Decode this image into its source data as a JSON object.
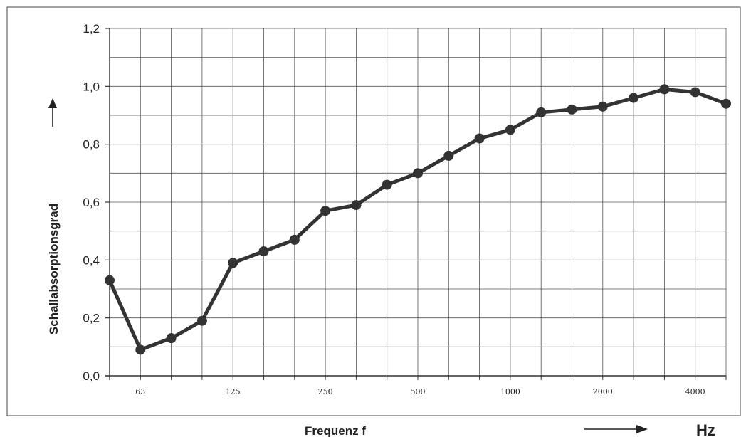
{
  "chart_data": {
    "type": "line",
    "xlabel": "Frequenz f",
    "ylabel": "Schallabsorptionsgrad",
    "x_unit": "Hz",
    "x_scale": "log",
    "ylim": [
      0,
      1.2
    ],
    "yticks": [
      "0,0",
      "0,2",
      "0,4",
      "0,6",
      "0,8",
      "1,0",
      "1,2"
    ],
    "x_tick_labels": [
      "63",
      "125",
      "250",
      "500",
      "1000",
      "2000",
      "4000"
    ],
    "grid": true,
    "x": [
      50,
      63,
      80,
      100,
      125,
      160,
      200,
      250,
      315,
      400,
      500,
      630,
      800,
      1000,
      1250,
      1600,
      2000,
      2500,
      3150,
      4000,
      5000
    ],
    "series": [
      {
        "values": [
          0.33,
          0.09,
          0.13,
          0.19,
          0.39,
          0.43,
          0.47,
          0.57,
          0.59,
          0.66,
          0.7,
          0.76,
          0.82,
          0.85,
          0.91,
          0.92,
          0.93,
          0.96,
          0.99,
          0.98,
          0.94
        ],
        "color": "#333333"
      }
    ]
  }
}
